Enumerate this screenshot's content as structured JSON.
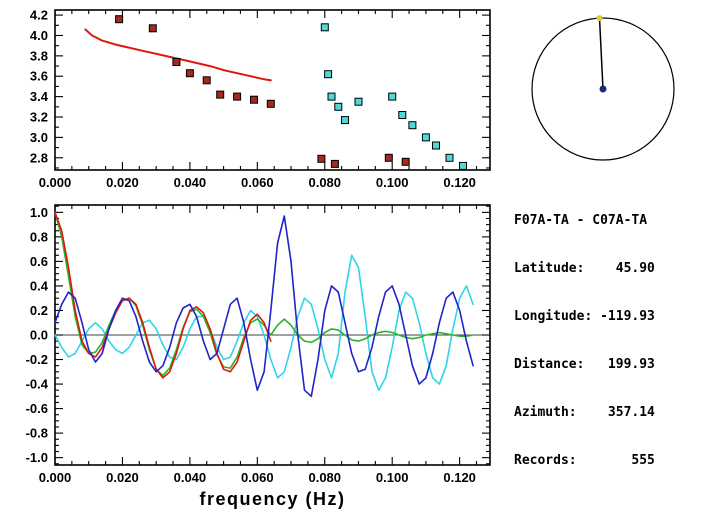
{
  "window": {
    "background": "#ffffff"
  },
  "info_panel": {
    "lines": [
      "F07A-TA - C07A-TA",
      "Latitude:    45.90",
      "Longitude: -119.93",
      "Distance:   199.93",
      "Azimuth:    357.14",
      "Records:       555"
    ]
  },
  "chart_data": [
    {
      "id": "dispersion",
      "type": "scatter",
      "title": "",
      "xlabel": "",
      "ylabel": "",
      "xlim": [
        0,
        0.129
      ],
      "ylim": [
        2.68,
        4.25
      ],
      "xticks": [
        0,
        0.02,
        0.04,
        0.06,
        0.08,
        0.1,
        0.12
      ],
      "xtick_labels": [
        "0.000",
        "0.020",
        "0.040",
        "0.060",
        "0.080",
        "0.100",
        "0.120"
      ],
      "xminor": 0.005,
      "yticks": [
        2.8,
        3.0,
        3.2,
        3.4,
        3.6,
        3.8,
        4.0,
        4.2
      ],
      "ytick_labels": [
        "2.8",
        "3.0",
        "3.2",
        "3.4",
        "3.6",
        "3.8",
        "4.0",
        "4.2"
      ],
      "yminor": 0.1,
      "grid": false,
      "series": [
        {
          "name": "reference-dispersion-curve",
          "color": "#e0180c",
          "width": 2,
          "x": [
            0.009,
            0.011,
            0.014,
            0.018,
            0.022,
            0.026,
            0.03,
            0.034,
            0.038,
            0.042,
            0.046,
            0.05,
            0.054,
            0.058,
            0.062,
            0.064
          ],
          "y": [
            4.06,
            4.0,
            3.95,
            3.91,
            3.88,
            3.85,
            3.82,
            3.79,
            3.76,
            3.73,
            3.7,
            3.66,
            3.63,
            3.6,
            3.57,
            3.56
          ]
        }
      ],
      "scatter_series": [
        {
          "name": "group-velocity-picks-red",
          "color": "#a62820",
          "size": 7,
          "x": [
            0.019,
            0.029,
            0.036,
            0.04,
            0.045,
            0.049,
            0.054,
            0.059,
            0.064,
            0.079,
            0.083,
            0.099,
            0.104
          ],
          "y": [
            4.16,
            4.07,
            3.74,
            3.63,
            3.56,
            3.42,
            3.4,
            3.37,
            3.33,
            2.79,
            2.74,
            2.8,
            2.76
          ]
        },
        {
          "name": "group-velocity-picks-cyan",
          "color": "#50d8d8",
          "size": 7,
          "x": [
            0.08,
            0.081,
            0.082,
            0.084,
            0.086,
            0.09,
            0.1,
            0.103,
            0.106,
            0.11,
            0.113,
            0.117,
            0.121
          ],
          "y": [
            4.08,
            3.62,
            3.4,
            3.3,
            3.17,
            3.35,
            3.4,
            3.22,
            3.12,
            3.0,
            2.92,
            2.8,
            2.72
          ]
        }
      ]
    },
    {
      "id": "correlation",
      "type": "line",
      "title": "",
      "xlabel": "frequency (Hz)",
      "ylabel": "",
      "xlim": [
        0,
        0.129
      ],
      "ylim": [
        -1.06,
        1.06
      ],
      "xticks": [
        0,
        0.02,
        0.04,
        0.06,
        0.08,
        0.1,
        0.12
      ],
      "xtick_labels": [
        "0.000",
        "0.020",
        "0.040",
        "0.060",
        "0.080",
        "0.100",
        "0.120"
      ],
      "xminor": 0.005,
      "yticks": [
        -1.0,
        -0.8,
        -0.6,
        -0.4,
        -0.2,
        0.0,
        0.2,
        0.4,
        0.6,
        0.8,
        1.0
      ],
      "ytick_labels": [
        "-1.0",
        "-0.8",
        "-0.6",
        "-0.4",
        "-0.2",
        "0.0",
        "0.2",
        "0.4",
        "0.6",
        "0.8",
        "1.0"
      ],
      "yminor": 0.05,
      "grid": false,
      "hline": 0,
      "x": [
        0,
        0.002,
        0.004,
        0.006,
        0.008,
        0.01,
        0.012,
        0.014,
        0.016,
        0.018,
        0.02,
        0.022,
        0.024,
        0.026,
        0.028,
        0.03,
        0.032,
        0.034,
        0.036,
        0.038,
        0.04,
        0.042,
        0.044,
        0.046,
        0.048,
        0.05,
        0.052,
        0.054,
        0.056,
        0.058,
        0.06,
        0.062,
        0.064,
        0.066,
        0.068,
        0.07,
        0.072,
        0.074,
        0.076,
        0.078,
        0.08,
        0.082,
        0.084,
        0.086,
        0.088,
        0.09,
        0.092,
        0.094,
        0.096,
        0.098,
        0.1,
        0.102,
        0.104,
        0.106,
        0.108,
        0.11,
        0.112,
        0.114,
        0.116,
        0.118,
        0.12,
        0.122,
        0.124
      ],
      "series": [
        {
          "name": "coherence-cyan",
          "color": "#30d4e8",
          "width": 1.6,
          "y": [
            0.0,
            -0.1,
            -0.18,
            -0.15,
            -0.05,
            0.05,
            0.1,
            0.05,
            -0.05,
            -0.12,
            -0.15,
            -0.1,
            0.0,
            0.1,
            0.12,
            0.05,
            -0.08,
            -0.18,
            -0.2,
            -0.1,
            0.05,
            0.15,
            0.15,
            0.05,
            -0.1,
            -0.2,
            -0.18,
            -0.05,
            0.1,
            0.2,
            0.15,
            0.0,
            -0.2,
            -0.35,
            -0.3,
            -0.1,
            0.15,
            0.3,
            0.25,
            0.05,
            -0.2,
            -0.35,
            -0.15,
            0.35,
            0.65,
            0.55,
            0.15,
            -0.3,
            -0.45,
            -0.35,
            -0.1,
            0.2,
            0.35,
            0.3,
            0.1,
            -0.15,
            -0.35,
            -0.4,
            -0.25,
            0.05,
            0.3,
            0.4,
            0.25
          ]
        },
        {
          "name": "smoothed-correlation-green",
          "color": "#28b428",
          "width": 1.6,
          "y": [
            1.0,
            0.8,
            0.48,
            0.15,
            -0.08,
            -0.15,
            -0.14,
            -0.06,
            0.08,
            0.2,
            0.28,
            0.3,
            0.24,
            0.08,
            -0.12,
            -0.28,
            -0.33,
            -0.27,
            -0.12,
            0.06,
            0.19,
            0.21,
            0.15,
            0.02,
            -0.16,
            -0.26,
            -0.27,
            -0.18,
            -0.02,
            0.1,
            0.13,
            0.08,
            0.0,
            0.08,
            0.13,
            0.08,
            0.0,
            -0.05,
            -0.06,
            -0.03,
            0.02,
            0.05,
            0.04,
            0.0,
            -0.04,
            -0.05,
            -0.03,
            0.0,
            0.02,
            0.03,
            0.02,
            0.0,
            -0.02,
            -0.03,
            -0.02,
            0.0,
            0.01,
            0.02,
            0.01,
            0.0,
            -0.01,
            -0.01,
            0.0
          ]
        },
        {
          "name": "filtered-correlation-red",
          "color": "#e0180c",
          "width": 1.6,
          "x": [
            0,
            0.002,
            0.004,
            0.006,
            0.008,
            0.01,
            0.012,
            0.014,
            0.016,
            0.018,
            0.02,
            0.022,
            0.024,
            0.026,
            0.028,
            0.03,
            0.032,
            0.034,
            0.036,
            0.038,
            0.04,
            0.042,
            0.044,
            0.046,
            0.048,
            0.05,
            0.052,
            0.054,
            0.056,
            0.058,
            0.06,
            0.062,
            0.064
          ],
          "y": [
            1.0,
            0.85,
            0.55,
            0.2,
            -0.05,
            -0.15,
            -0.18,
            -0.1,
            0.05,
            0.18,
            0.28,
            0.3,
            0.25,
            0.1,
            -0.1,
            -0.28,
            -0.35,
            -0.3,
            -0.15,
            0.05,
            0.2,
            0.23,
            0.18,
            0.05,
            -0.15,
            -0.28,
            -0.3,
            -0.22,
            -0.05,
            0.12,
            0.17,
            0.1,
            -0.05
          ]
        },
        {
          "name": "raw-correlation-blue",
          "color": "#2024c8",
          "width": 1.6,
          "y": [
            0.1,
            0.25,
            0.35,
            0.3,
            0.1,
            -0.12,
            -0.22,
            -0.15,
            0.05,
            0.2,
            0.3,
            0.28,
            0.15,
            -0.05,
            -0.22,
            -0.3,
            -0.25,
            -0.1,
            0.1,
            0.22,
            0.25,
            0.15,
            -0.05,
            -0.2,
            -0.15,
            0.05,
            0.25,
            0.3,
            0.1,
            -0.2,
            -0.45,
            -0.3,
            0.2,
            0.75,
            0.97,
            0.6,
            0.0,
            -0.45,
            -0.5,
            -0.2,
            0.2,
            0.4,
            0.35,
            0.1,
            -0.15,
            -0.3,
            -0.28,
            -0.1,
            0.15,
            0.35,
            0.4,
            0.25,
            0.0,
            -0.25,
            -0.4,
            -0.35,
            -0.15,
            0.1,
            0.3,
            0.35,
            0.2,
            -0.05,
            -0.25
          ]
        }
      ]
    },
    {
      "id": "azimuth-dial",
      "type": "dial",
      "azimuth_deg": 357.14,
      "circle_color": "#000000",
      "pointer_color": "#000000",
      "edge_dot_color": "#e6c832",
      "center_dot_color": "#1c2c6e"
    }
  ]
}
